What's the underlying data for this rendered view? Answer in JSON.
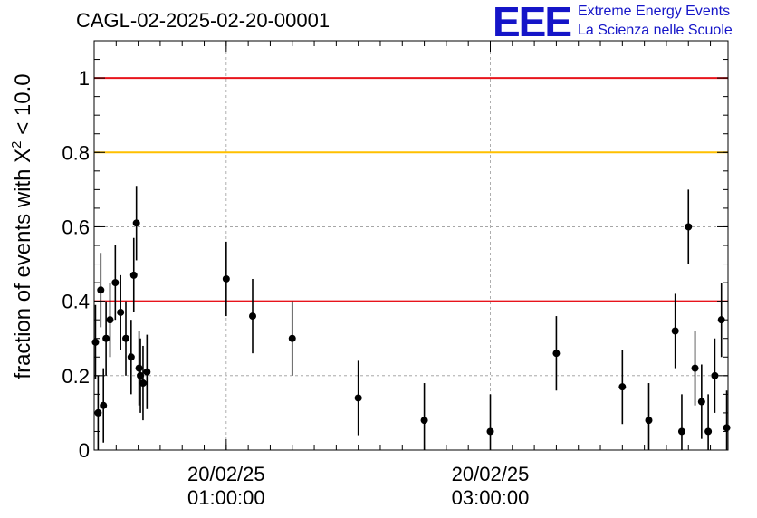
{
  "header": {
    "run_id": "CAGL-02-2025-02-20-00001",
    "logo_letters": "EEE",
    "logo_line1": "Extreme Energy Events",
    "logo_line2": "La Scienza nelle Scuole"
  },
  "chart_data": {
    "type": "scatter",
    "title": "CAGL-02-2025-02-20-00001",
    "ylabel_prefix": "fraction of events with ",
    "ylabel_symbol": "X",
    "ylabel_power": "2",
    "ylabel_suffix": " < 10.0",
    "xlabel": "",
    "x_unit": "hours since 20/02/25 00:00:00",
    "xlim": [
      0.0,
      4.8
    ],
    "ylim": [
      0.0,
      1.1
    ],
    "y_ticks": [
      {
        "value": 0.0,
        "label": "0"
      },
      {
        "value": 0.2,
        "label": "0.2"
      },
      {
        "value": 0.4,
        "label": "0.4"
      },
      {
        "value": 0.6,
        "label": "0.6"
      },
      {
        "value": 0.8,
        "label": "0.8"
      },
      {
        "value": 1.0,
        "label": "1"
      }
    ],
    "x_ticks": [
      {
        "value": 1.0,
        "date": "20/02/25",
        "time": "01:00:00"
      },
      {
        "value": 3.0,
        "date": "20/02/25",
        "time": "03:00:00"
      }
    ],
    "grid": true,
    "reference_lines": [
      {
        "y": 1.0,
        "color": "#e8141c"
      },
      {
        "y": 0.8,
        "color": "#ffc000"
      },
      {
        "y": 0.4,
        "color": "#e8141c"
      }
    ],
    "series": [
      {
        "name": "fraction",
        "color": "#000000",
        "error_bar_note": "symmetric error bars about +-0.1",
        "x": [
          0.01,
          0.03,
          0.05,
          0.07,
          0.09,
          0.12,
          0.16,
          0.2,
          0.24,
          0.28,
          0.3,
          0.32,
          0.34,
          0.35,
          0.37,
          0.4,
          1.0,
          1.2,
          1.5,
          2.0,
          2.5,
          3.0,
          3.5,
          4.0,
          4.2,
          4.4,
          4.45,
          4.5,
          4.55,
          4.6,
          4.65,
          4.7,
          4.75,
          4.79
        ],
        "y": [
          0.29,
          0.1,
          0.43,
          0.12,
          0.3,
          0.35,
          0.45,
          0.37,
          0.3,
          0.25,
          0.47,
          0.61,
          0.22,
          0.2,
          0.18,
          0.21,
          0.46,
          0.36,
          0.3,
          0.14,
          0.08,
          0.05,
          0.26,
          0.17,
          0.08,
          0.32,
          0.05,
          0.6,
          0.22,
          0.13,
          0.05,
          0.2,
          0.35,
          0.06
        ]
      }
    ]
  }
}
